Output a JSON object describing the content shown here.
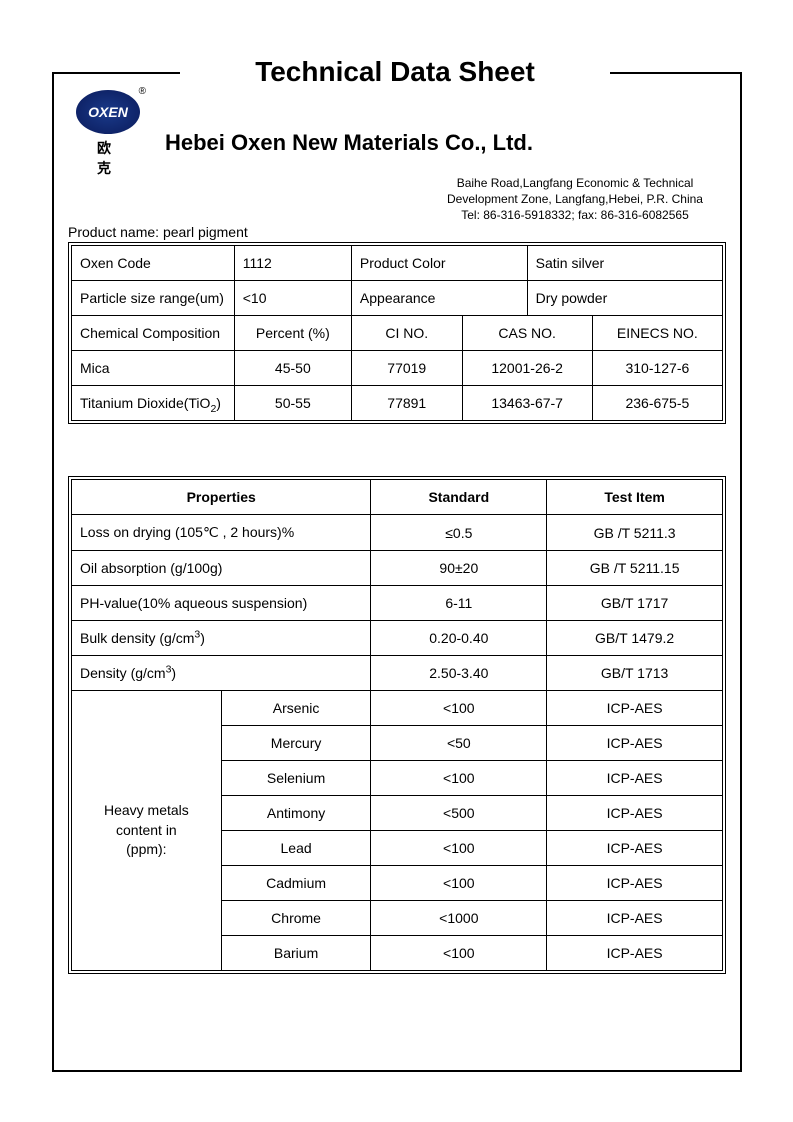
{
  "title": "Technical Data Sheet",
  "logo": {
    "text": "OXEN",
    "reg": "®",
    "cn": "欧   克"
  },
  "company": "Hebei Oxen New Materials Co., Ltd.",
  "address_line1": "Baihe Road,Langfang Economic & Technical",
  "address_line2": "Development Zone, Langfang,Hebei, P.R. China",
  "address_line3": "Tel: 86-316-5918332;     fax: 86-316-6082565",
  "product_name_label": "Product name: pearl pigment",
  "table1": {
    "row1": {
      "k1": "Oxen Code",
      "v1": "1112",
      "k2": "Product Color",
      "v2": "Satin silver"
    },
    "row2": {
      "k1": "Particle size range(um)",
      "v1": "<10",
      "k2": "Appearance",
      "v2": "Dry powder"
    },
    "headers": {
      "c1": "Chemical Composition",
      "c2": "Percent (%)",
      "c3": "CI NO.",
      "c4": "CAS NO.",
      "c5": "EINECS NO."
    },
    "comp1": {
      "name": "Mica",
      "pct": "45-50",
      "ci": "77019",
      "cas": "12001-26-2",
      "einecs": "310-127-6"
    },
    "comp2": {
      "name_html": "Titanium Dioxide(TiO",
      "sub": "2",
      "name_tail": ")",
      "pct": "50-55",
      "ci": "77891",
      "cas": "13463-67-7",
      "einecs": "236-675-5"
    }
  },
  "table2": {
    "headers": {
      "c1": "Properties",
      "c2": "Standard",
      "c3": "Test Item"
    },
    "rows": [
      {
        "prop": "Loss on drying (105℃ , 2 hours)%",
        "std": "≤0.5",
        "test": "GB /T 5211.3"
      },
      {
        "prop": "Oil absorption    (g/100g)",
        "std": "90±20",
        "test": "GB /T 5211.15"
      },
      {
        "prop": "PH-value(10% aqueous suspension)",
        "std": "6-11",
        "test": "GB/T 1717"
      },
      {
        "prop_html": "Bulk density (g/cm",
        "sup": "3",
        "prop_tail": ")",
        "std": "0.20-0.40",
        "test": "GB/T 1479.2"
      },
      {
        "prop_html": "Density (g/cm",
        "sup": "3",
        "prop_tail": ")",
        "std": "2.50-3.40",
        "test": "GB/T 1713"
      }
    ],
    "metals_label": "Heavy metals content in (ppm):",
    "metals": [
      {
        "name": "Arsenic",
        "std": "<100",
        "test": "ICP-AES"
      },
      {
        "name": "Mercury",
        "std": "<50",
        "test": "ICP-AES"
      },
      {
        "name": "Selenium",
        "std": "<100",
        "test": "ICP-AES"
      },
      {
        "name": "Antimony",
        "std": "<500",
        "test": "ICP-AES"
      },
      {
        "name": "Lead",
        "std": "<100",
        "test": "ICP-AES"
      },
      {
        "name": "Cadmium",
        "std": "<100",
        "test": "ICP-AES"
      },
      {
        "name": "Chrome",
        "std": "<1000",
        "test": "ICP-AES"
      },
      {
        "name": "Barium",
        "std": "<100",
        "test": "ICP-AES"
      }
    ]
  },
  "colors": {
    "logo_bg": "#1a3a8a",
    "border": "#000000",
    "bg": "#ffffff"
  },
  "columns": {
    "t1_info": [
      "25%",
      "18%",
      "27%",
      "30%"
    ],
    "t1_comp": [
      "25%",
      "18%",
      "17%",
      "20%",
      "20%"
    ],
    "t2_main": [
      "23%",
      "23%",
      "27%",
      "27%"
    ]
  }
}
